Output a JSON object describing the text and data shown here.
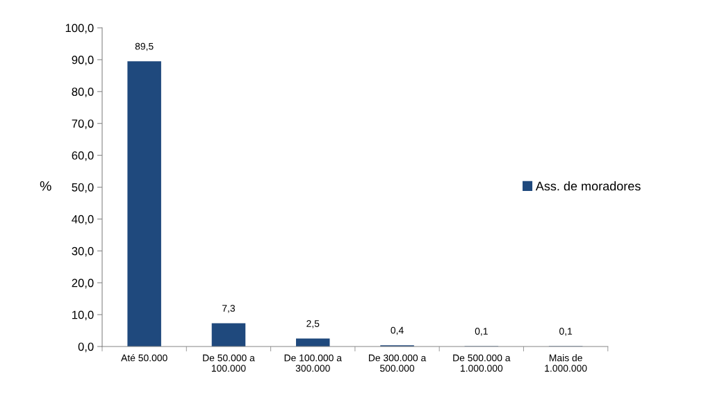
{
  "chart_data": {
    "type": "bar",
    "ylabel": "%",
    "categories": [
      "Até 50.000",
      "De 50.000 a\n100.000",
      "De 100.000 a\n300.000",
      "De 300.000 a\n500.000",
      "De 500.000 a\n1.000.000",
      "Mais de\n1.000.000"
    ],
    "series": [
      {
        "name": "Ass. de moradores",
        "color": "#1f497d",
        "values": [
          89.5,
          7.3,
          2.5,
          0.4,
          0.1,
          0.1
        ],
        "value_labels": [
          "89,5",
          "7,3",
          "2,5",
          "0,4",
          "0,1",
          "0,1"
        ]
      }
    ],
    "ylim": [
      0,
      100
    ],
    "yticks": [
      {
        "value": 0,
        "label": "0,0"
      },
      {
        "value": 10,
        "label": "10,0"
      },
      {
        "value": 20,
        "label": "20,0"
      },
      {
        "value": 30,
        "label": "30,0"
      },
      {
        "value": 40,
        "label": "40,0"
      },
      {
        "value": 50,
        "label": "50,0"
      },
      {
        "value": 60,
        "label": "60,0"
      },
      {
        "value": 70,
        "label": "70,0"
      },
      {
        "value": 80,
        "label": "80,0"
      },
      {
        "value": 90,
        "label": "90,0"
      },
      {
        "value": 100,
        "label": "100,0"
      }
    ],
    "grid": false,
    "legend": "right"
  }
}
